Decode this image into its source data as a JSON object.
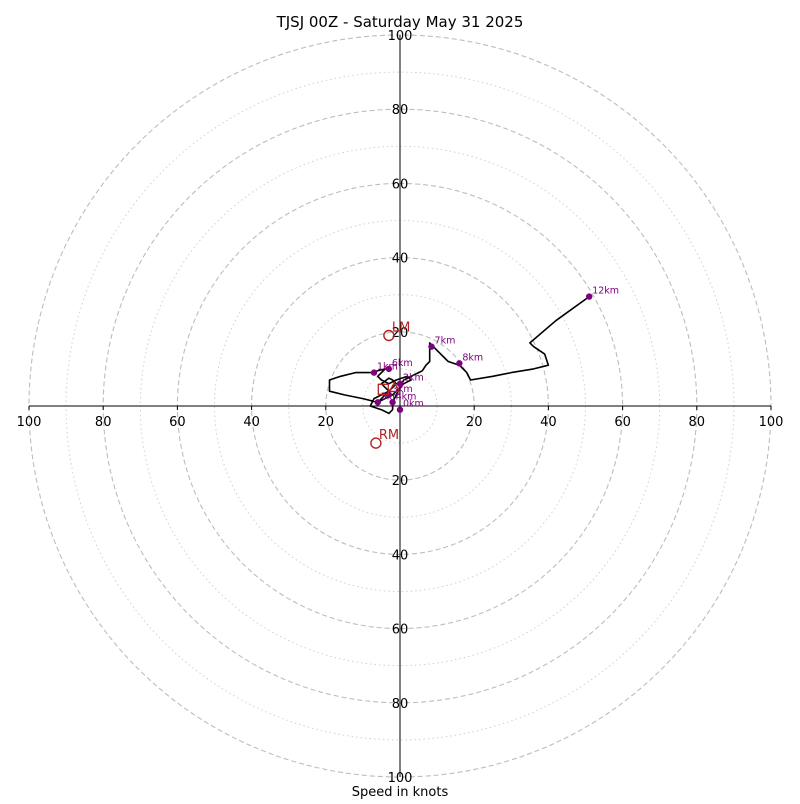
{
  "chart_data": {
    "type": "scatter",
    "subtype": "hodograph",
    "title": "TJSJ 00Z - Saturday May 31 2025",
    "xlabel": "Speed in knots",
    "ylabel": "",
    "units": "knots",
    "xlim": [
      -100,
      100
    ],
    "ylim": [
      -100,
      100
    ],
    "rings": {
      "major": [
        20,
        40,
        60,
        80,
        100
      ],
      "minor": [
        10,
        30,
        50,
        70,
        90
      ],
      "major_style": "dashed",
      "minor_style": "dotted"
    },
    "tick_labels": {
      "x": [
        "100",
        "80",
        "60",
        "40",
        "20",
        "20",
        "40",
        "60",
        "80",
        "100"
      ],
      "y": [
        "100",
        "80",
        "60",
        "40",
        "20",
        "20",
        "40",
        "60",
        "80",
        "100"
      ]
    },
    "hodograph_trace": [
      [
        -6,
        1
      ],
      [
        -4,
        3
      ],
      [
        -2,
        5
      ],
      [
        -1,
        6
      ],
      [
        -2,
        7
      ],
      [
        -3,
        7.5
      ],
      [
        -5,
        6
      ],
      [
        -3,
        4
      ],
      [
        -5,
        3
      ],
      [
        -7,
        2
      ],
      [
        -8,
        0
      ],
      [
        -5,
        -1
      ],
      [
        -3,
        -2
      ],
      [
        -2,
        -1
      ],
      [
        -2,
        1
      ],
      [
        -1,
        3
      ],
      [
        0,
        5
      ],
      [
        1,
        6
      ],
      [
        3,
        7
      ],
      [
        2,
        8
      ],
      [
        -1,
        7
      ],
      [
        -3,
        6
      ],
      [
        -5,
        7
      ],
      [
        -6,
        8
      ],
      [
        -4,
        10
      ],
      [
        -8,
        9
      ],
      [
        -12,
        9
      ],
      [
        -16,
        8
      ],
      [
        -19,
        7
      ],
      [
        -19,
        4
      ],
      [
        -15,
        3
      ],
      [
        -10,
        2
      ],
      [
        -6,
        1
      ],
      [
        -2,
        3
      ],
      [
        0,
        5
      ],
      [
        1,
        7
      ],
      [
        3,
        8
      ],
      [
        5,
        9
      ],
      [
        6,
        9.5
      ],
      [
        7,
        11
      ],
      [
        8,
        12
      ],
      [
        8,
        15
      ],
      [
        8,
        17
      ],
      [
        10,
        15
      ],
      [
        13,
        12
      ],
      [
        16,
        11
      ],
      [
        18,
        9
      ],
      [
        19,
        7
      ],
      [
        25,
        8
      ],
      [
        30,
        9
      ],
      [
        36,
        10
      ],
      [
        40,
        11
      ],
      [
        39,
        14
      ],
      [
        36,
        16
      ],
      [
        35,
        17
      ],
      [
        42,
        23
      ],
      [
        51,
        29.5
      ]
    ],
    "height_markers": [
      {
        "label": "0km",
        "x": 0,
        "y": -1
      },
      {
        "label": "1km",
        "x": -7,
        "y": 9
      },
      {
        "label": "2km",
        "x": 0,
        "y": 6
      },
      {
        "label": "3km",
        "x": -3,
        "y": 3
      },
      {
        "label": "4km",
        "x": -2,
        "y": 1
      },
      {
        "label": "5km",
        "x": -6,
        "y": 1
      },
      {
        "label": "6km",
        "x": -3,
        "y": 10
      },
      {
        "label": "7km",
        "x": 8.5,
        "y": 16
      },
      {
        "label": "8km",
        "x": 16,
        "y": 11.5
      },
      {
        "label": "12km",
        "x": 51,
        "y": 29.5
      }
    ],
    "storm_motion": [
      {
        "label": "LM",
        "x": -3,
        "y": 19
      },
      {
        "label": "RM",
        "x": -6.5,
        "y": -10
      },
      {
        "label": "",
        "x": -1.5,
        "y": 5,
        "marker": "triangle"
      },
      {
        "label": "",
        "x": -4.5,
        "y": 4.5,
        "marker": "square"
      }
    ],
    "grid": true,
    "legend": "none"
  },
  "colors": {
    "trace": "#000000",
    "markers": "#800080",
    "storm_motion": "#b22222",
    "rings": "#bdbdbd",
    "axes": "#000000"
  }
}
